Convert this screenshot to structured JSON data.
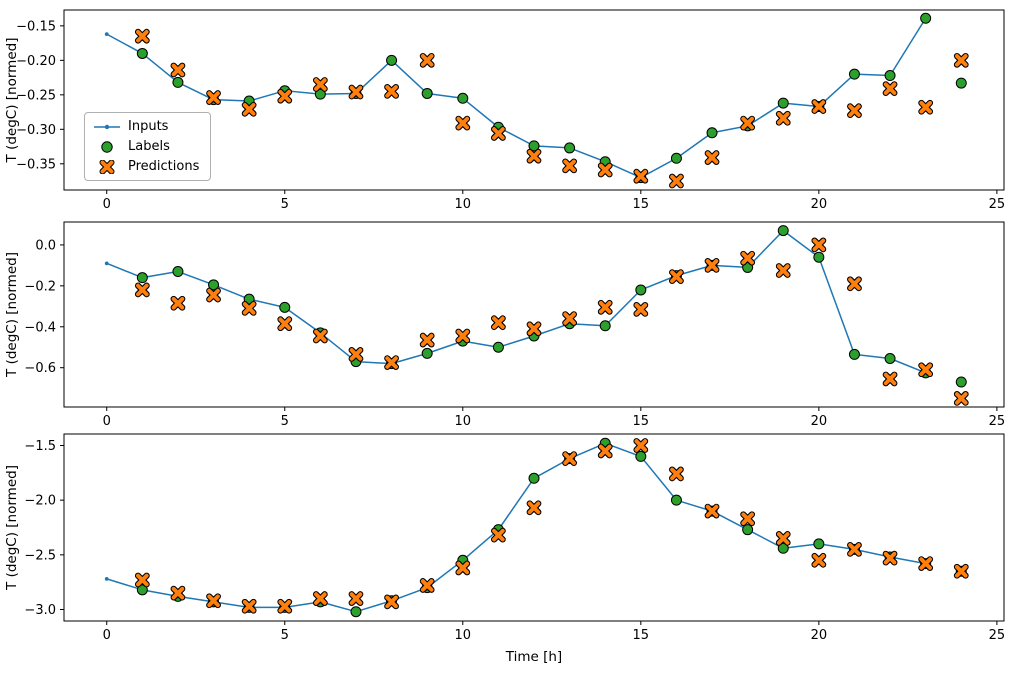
{
  "figure": {
    "xlabel": "Time [h]",
    "background": "#ffffff"
  },
  "legend": {
    "items": [
      "Inputs",
      "Labels",
      "Predictions"
    ]
  },
  "colors": {
    "inputs": "#1f77b4",
    "labels": "#2ca02c",
    "predictions": "#ff7f0e",
    "marker_edge": "#000000",
    "axis": "#000000"
  },
  "chart_data": [
    {
      "type": "line",
      "title": "",
      "xlabel": "",
      "ylabel": "T (degC) [normed]",
      "xlim": [
        -1.2,
        25.2
      ],
      "ylim": [
        -0.388,
        -0.127
      ],
      "xticks": [
        0,
        5,
        10,
        15,
        20,
        25
      ],
      "xtick_labels": [
        "0",
        "5",
        "10",
        "15",
        "20",
        "25"
      ],
      "yticks": [
        -0.15,
        -0.2,
        -0.25,
        -0.3,
        -0.35
      ],
      "ytick_labels": [
        "−0.15",
        "−0.20",
        "−0.25",
        "−0.30",
        "−0.35"
      ],
      "grid": false,
      "legend_position": "center left",
      "series": [
        {
          "name": "Inputs",
          "style": "line-dot",
          "x": [
            0,
            1,
            2,
            3,
            4,
            5,
            6,
            7,
            8,
            9,
            10,
            11,
            12,
            13,
            14,
            15,
            16,
            17,
            18,
            19,
            20,
            21,
            22,
            23
          ],
          "y": [
            -0.162,
            -0.19,
            -0.232,
            -0.257,
            -0.259,
            -0.244,
            -0.249,
            -0.248,
            -0.2,
            -0.248,
            -0.255,
            -0.297,
            -0.324,
            -0.327,
            -0.347,
            -0.37,
            -0.342,
            -0.305,
            -0.295,
            -0.262,
            -0.267,
            -0.22,
            -0.222,
            -0.139
          ]
        },
        {
          "name": "Labels",
          "style": "circle",
          "x": [
            1,
            2,
            3,
            4,
            5,
            6,
            7,
            8,
            9,
            10,
            11,
            12,
            13,
            14,
            15,
            16,
            17,
            18,
            19,
            20,
            21,
            22,
            23,
            24
          ],
          "y": [
            -0.19,
            -0.232,
            -0.257,
            -0.259,
            -0.244,
            -0.249,
            -0.248,
            -0.2,
            -0.248,
            -0.255,
            -0.297,
            -0.324,
            -0.327,
            -0.347,
            -0.37,
            -0.342,
            -0.305,
            -0.295,
            -0.262,
            -0.267,
            -0.22,
            -0.222,
            -0.139,
            -0.233
          ]
        },
        {
          "name": "Predictions",
          "style": "x",
          "x": [
            1,
            2,
            3,
            4,
            5,
            6,
            7,
            8,
            9,
            10,
            11,
            12,
            13,
            14,
            15,
            16,
            17,
            18,
            19,
            20,
            21,
            22,
            23,
            24
          ],
          "y": [
            -0.165,
            -0.214,
            -0.254,
            -0.271,
            -0.252,
            -0.235,
            -0.246,
            -0.245,
            -0.2,
            -0.291,
            -0.306,
            -0.339,
            -0.353,
            -0.359,
            -0.368,
            -0.375,
            -0.341,
            -0.291,
            -0.284,
            -0.267,
            -0.273,
            -0.241,
            -0.268,
            -0.2
          ]
        }
      ]
    },
    {
      "type": "line",
      "title": "",
      "xlabel": "",
      "ylabel": "T (degC) [normed]",
      "xlim": [
        -1.2,
        25.2
      ],
      "ylim": [
        -0.792,
        0.112
      ],
      "xticks": [
        0,
        5,
        10,
        15,
        20,
        25
      ],
      "xtick_labels": [
        "0",
        "5",
        "10",
        "15",
        "20",
        "25"
      ],
      "yticks": [
        0.0,
        -0.2,
        -0.4,
        -0.6
      ],
      "ytick_labels": [
        "0.0",
        "−0.2",
        "−0.4",
        "−0.6"
      ],
      "grid": false,
      "series": [
        {
          "name": "Inputs",
          "style": "line-dot",
          "x": [
            0,
            1,
            2,
            3,
            4,
            5,
            6,
            7,
            8,
            9,
            10,
            11,
            12,
            13,
            14,
            15,
            16,
            17,
            18,
            19,
            20,
            21,
            22,
            23
          ],
          "y": [
            -0.09,
            -0.16,
            -0.13,
            -0.195,
            -0.265,
            -0.305,
            -0.43,
            -0.57,
            -0.58,
            -0.53,
            -0.47,
            -0.5,
            -0.445,
            -0.385,
            -0.395,
            -0.22,
            -0.15,
            -0.1,
            -0.11,
            0.07,
            -0.06,
            -0.535,
            -0.555,
            -0.625
          ]
        },
        {
          "name": "Labels",
          "style": "circle",
          "x": [
            1,
            2,
            3,
            4,
            5,
            6,
            7,
            8,
            9,
            10,
            11,
            12,
            13,
            14,
            15,
            16,
            17,
            18,
            19,
            20,
            21,
            22,
            23,
            24
          ],
          "y": [
            -0.16,
            -0.13,
            -0.195,
            -0.265,
            -0.305,
            -0.43,
            -0.57,
            -0.58,
            -0.53,
            -0.47,
            -0.5,
            -0.445,
            -0.385,
            -0.395,
            -0.22,
            -0.15,
            -0.1,
            -0.11,
            0.07,
            -0.06,
            -0.535,
            -0.555,
            -0.625,
            -0.67
          ]
        },
        {
          "name": "Predictions",
          "style": "x",
          "x": [
            1,
            2,
            3,
            4,
            5,
            6,
            7,
            8,
            9,
            10,
            11,
            12,
            13,
            14,
            15,
            16,
            17,
            18,
            19,
            20,
            21,
            22,
            23,
            24
          ],
          "y": [
            -0.22,
            -0.285,
            -0.245,
            -0.31,
            -0.385,
            -0.445,
            -0.535,
            -0.575,
            -0.465,
            -0.445,
            -0.38,
            -0.41,
            -0.36,
            -0.305,
            -0.315,
            -0.155,
            -0.1,
            -0.065,
            -0.125,
            0.0,
            -0.19,
            -0.655,
            -0.61,
            -0.75
          ]
        }
      ]
    },
    {
      "type": "line",
      "title": "",
      "xlabel": "Time [h]",
      "ylabel": "T (degC) [normed]",
      "xlim": [
        -1.2,
        25.2
      ],
      "ylim": [
        -3.105,
        -1.395
      ],
      "xticks": [
        0,
        5,
        10,
        15,
        20,
        25
      ],
      "xtick_labels": [
        "0",
        "5",
        "10",
        "15",
        "20",
        "25"
      ],
      "yticks": [
        -1.5,
        -2.0,
        -2.5,
        -3.0
      ],
      "ytick_labels": [
        "−1.5",
        "−2.0",
        "−2.5",
        "−3.0"
      ],
      "grid": false,
      "series": [
        {
          "name": "Inputs",
          "style": "line-dot",
          "x": [
            0,
            1,
            2,
            3,
            4,
            5,
            6,
            7,
            8,
            9,
            10,
            11,
            12,
            13,
            14,
            15,
            16,
            17,
            18,
            19,
            20,
            21,
            22,
            23
          ],
          "y": [
            -2.72,
            -2.82,
            -2.88,
            -2.93,
            -2.98,
            -2.98,
            -2.93,
            -3.02,
            -2.92,
            -2.8,
            -2.55,
            -2.27,
            -1.8,
            -1.62,
            -1.48,
            -1.6,
            -2.0,
            -2.1,
            -2.27,
            -2.44,
            -2.4,
            -2.45,
            -2.52,
            -2.58
          ]
        },
        {
          "name": "Labels",
          "style": "circle",
          "x": [
            1,
            2,
            3,
            4,
            5,
            6,
            7,
            8,
            9,
            10,
            11,
            12,
            13,
            14,
            15,
            16,
            17,
            18,
            19,
            20,
            21,
            22,
            23,
            24
          ],
          "y": [
            -2.82,
            -2.88,
            -2.93,
            -2.98,
            -2.98,
            -2.93,
            -3.02,
            -2.92,
            -2.8,
            -2.55,
            -2.27,
            -1.8,
            -1.62,
            -1.48,
            -1.6,
            -2.0,
            -2.1,
            -2.27,
            -2.44,
            -2.4,
            -2.45,
            -2.52,
            -2.58,
            -2.65
          ]
        },
        {
          "name": "Predictions",
          "style": "x",
          "x": [
            1,
            2,
            3,
            4,
            5,
            6,
            7,
            8,
            9,
            10,
            11,
            12,
            13,
            14,
            15,
            16,
            17,
            18,
            19,
            20,
            21,
            22,
            23,
            24
          ],
          "y": [
            -2.73,
            -2.85,
            -2.92,
            -2.97,
            -2.97,
            -2.9,
            -2.9,
            -2.93,
            -2.78,
            -2.62,
            -2.32,
            -2.07,
            -1.62,
            -1.55,
            -1.5,
            -1.76,
            -2.1,
            -2.17,
            -2.35,
            -2.55,
            -2.45,
            -2.53,
            -2.58,
            -2.65
          ]
        }
      ]
    }
  ]
}
